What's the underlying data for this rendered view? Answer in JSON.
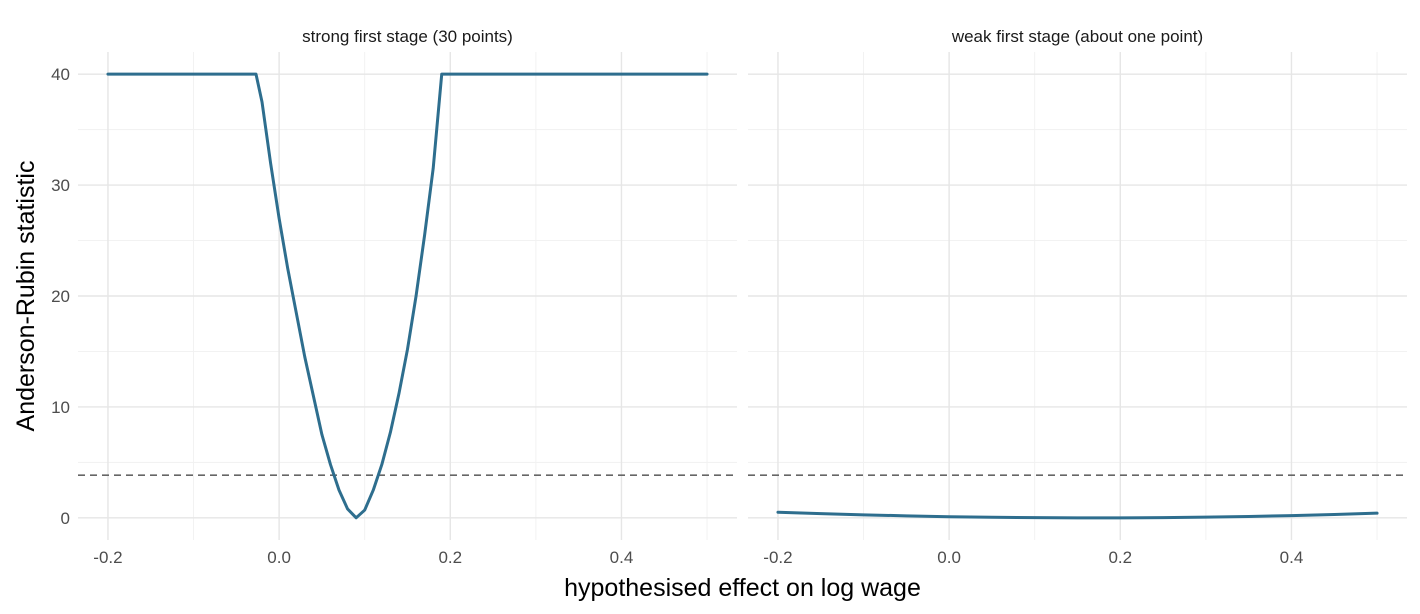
{
  "chart_data": {
    "type": "line",
    "xlabel": "hypothesised effect on log wage",
    "ylabel": "Anderson-Rubin statistic",
    "xlim": [
      -0.235,
      0.535
    ],
    "ylim": [
      -2,
      42
    ],
    "x_ticks": [
      -0.2,
      0.0,
      0.2,
      0.4
    ],
    "x_tick_labels": [
      "-0.2",
      "0.0",
      "0.2",
      "0.4"
    ],
    "y_ticks": [
      0,
      10,
      20,
      30,
      40
    ],
    "y_tick_labels": [
      "0",
      "10",
      "20",
      "30",
      "40"
    ],
    "grid": true,
    "reference_line": {
      "y": 3.84,
      "style": "dashed",
      "color": "#666666"
    },
    "line_color": "#2e6e8e",
    "panels": [
      {
        "title": "strong first stage (30 points)",
        "series": [
          {
            "x": [
              -0.2,
              -0.1,
              -0.05,
              -0.027,
              -0.02,
              -0.01,
              0.0,
              0.01,
              0.02,
              0.03,
              0.04,
              0.05,
              0.06,
              0.07,
              0.08,
              0.09,
              0.1,
              0.11,
              0.12,
              0.13,
              0.14,
              0.15,
              0.16,
              0.17,
              0.18,
              0.19,
              0.2,
              0.3,
              0.4,
              0.5
            ],
            "y": [
              40,
              40,
              40,
              40,
              37.5,
              32.0,
              27.0,
              22.5,
              18.5,
              14.5,
              11.0,
              7.5,
              4.8,
              2.5,
              0.8,
              0.0,
              0.7,
              2.5,
              4.8,
              7.7,
              11.2,
              15.2,
              20.0,
              25.5,
              31.5,
              40,
              40,
              40,
              40,
              40
            ]
          }
        ]
      },
      {
        "title": "weak first stage (about one point)",
        "series": [
          {
            "x": [
              -0.2,
              -0.15,
              -0.1,
              -0.05,
              0.0,
              0.05,
              0.1,
              0.15,
              0.2,
              0.25,
              0.3,
              0.35,
              0.4,
              0.45,
              0.5
            ],
            "y": [
              0.5,
              0.38,
              0.27,
              0.18,
              0.1,
              0.05,
              0.02,
              0.0,
              0.0,
              0.02,
              0.06,
              0.12,
              0.2,
              0.3,
              0.42
            ]
          }
        ]
      }
    ]
  }
}
